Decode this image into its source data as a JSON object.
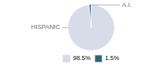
{
  "chart_data": {
    "type": "pie",
    "categories": [
      "HISPANIC",
      "A.I."
    ],
    "values": [
      98.5,
      1.5
    ],
    "value_labels": [
      "98.5%",
      "1.5%"
    ],
    "colors": [
      "#d6dde8",
      "#2e6388"
    ],
    "legend": "bottom"
  }
}
